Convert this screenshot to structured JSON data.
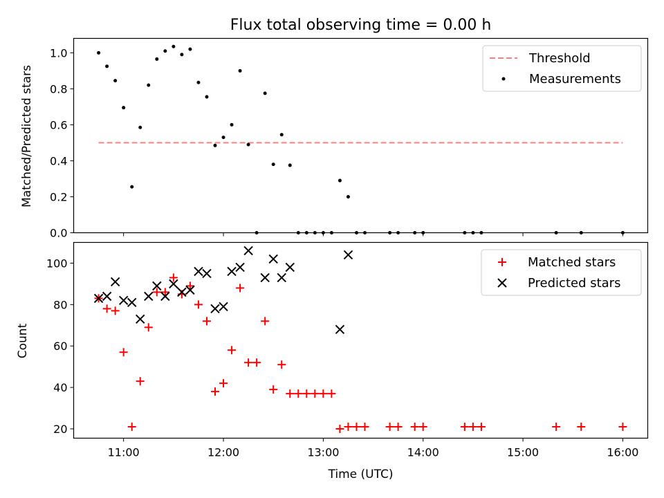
{
  "chart_data": [
    {
      "type": "scatter",
      "title": "Flux total observing time = 0.00 h",
      "xlabel": "",
      "ylabel": "Matched/Predicted stars",
      "xlim": [
        "10:30",
        "16:15"
      ],
      "ylim": [
        0,
        1.08
      ],
      "yticks": [
        "0.0",
        "0.2",
        "0.4",
        "0.6",
        "0.8",
        "1.0"
      ],
      "grid": false,
      "legend": {
        "placement": "top-right",
        "entries": [
          "Threshold",
          "Measurements"
        ]
      },
      "threshold": {
        "name": "Threshold",
        "value": 0.5,
        "x_start": "10:45",
        "x_end": "16:00",
        "color": "#ff7f7f"
      },
      "series": [
        {
          "name": "Measurements",
          "color": "#000000",
          "points": [
            [
              "10:45",
              1.0
            ],
            [
              "10:50",
              0.925
            ],
            [
              "10:55",
              0.845
            ],
            [
              "11:00",
              0.695
            ],
            [
              "11:05",
              0.255
            ],
            [
              "11:10",
              0.585
            ],
            [
              "11:15",
              0.82
            ],
            [
              "11:20",
              0.965
            ],
            [
              "11:25",
              1.01
            ],
            [
              "11:30",
              1.035
            ],
            [
              "11:35",
              0.99
            ],
            [
              "11:40",
              1.02
            ],
            [
              "11:45",
              0.835
            ],
            [
              "11:50",
              0.755
            ],
            [
              "11:55",
              0.485
            ],
            [
              "12:00",
              0.53
            ],
            [
              "12:05",
              0.6
            ],
            [
              "12:10",
              0.9
            ],
            [
              "12:15",
              0.49
            ],
            [
              "12:20",
              0.0
            ],
            [
              "12:25",
              0.775
            ],
            [
              "12:30",
              0.38
            ],
            [
              "12:35",
              0.545
            ],
            [
              "12:40",
              0.375
            ],
            [
              "12:45",
              0.0
            ],
            [
              "12:50",
              0.0
            ],
            [
              "12:55",
              0.0
            ],
            [
              "13:00",
              0.0
            ],
            [
              "13:05",
              0.0
            ],
            [
              "13:10",
              0.29
            ],
            [
              "13:15",
              0.2
            ],
            [
              "13:20",
              0.0
            ],
            [
              "13:25",
              0.0
            ],
            [
              "13:40",
              0.0
            ],
            [
              "13:45",
              0.0
            ],
            [
              "13:55",
              0.0
            ],
            [
              "14:00",
              0.0
            ],
            [
              "14:25",
              0.0
            ],
            [
              "14:30",
              0.0
            ],
            [
              "14:35",
              0.0
            ],
            [
              "15:20",
              0.0
            ],
            [
              "15:35",
              0.0
            ],
            [
              "16:00",
              0.0
            ]
          ]
        }
      ]
    },
    {
      "type": "scatter",
      "title": "",
      "xlabel": "Time (UTC)",
      "ylabel": "Count",
      "xlim": [
        "10:30",
        "16:15"
      ],
      "ylim": [
        15.5,
        110
      ],
      "xticks": [
        "11:00",
        "12:00",
        "13:00",
        "14:00",
        "15:00",
        "16:00"
      ],
      "yticks": [
        "20",
        "40",
        "60",
        "80",
        "100"
      ],
      "grid": false,
      "legend": {
        "placement": "top-right",
        "entries": [
          "Matched stars",
          "Predicted stars"
        ]
      },
      "series": [
        {
          "name": "Matched stars",
          "marker": "+",
          "color": "#ff0000",
          "points": [
            [
              "10:45",
              83
            ],
            [
              "10:50",
              78
            ],
            [
              "10:55",
              77
            ],
            [
              "11:00",
              57
            ],
            [
              "11:05",
              21
            ],
            [
              "11:10",
              43
            ],
            [
              "11:15",
              69
            ],
            [
              "11:20",
              86
            ],
            [
              "11:25",
              86
            ],
            [
              "11:30",
              93
            ],
            [
              "11:35",
              85
            ],
            [
              "11:40",
              89
            ],
            [
              "11:45",
              80
            ],
            [
              "11:50",
              72
            ],
            [
              "11:55",
              38
            ],
            [
              "12:00",
              42
            ],
            [
              "12:05",
              58
            ],
            [
              "12:10",
              88
            ],
            [
              "12:15",
              52
            ],
            [
              "12:20",
              52
            ],
            [
              "12:25",
              72
            ],
            [
              "12:30",
              39
            ],
            [
              "12:35",
              51
            ],
            [
              "12:40",
              37
            ],
            [
              "12:45",
              37
            ],
            [
              "12:50",
              37
            ],
            [
              "12:55",
              37
            ],
            [
              "13:00",
              37
            ],
            [
              "13:05",
              37
            ],
            [
              "13:10",
              20
            ],
            [
              "13:15",
              21
            ],
            [
              "13:20",
              21
            ],
            [
              "13:25",
              21
            ],
            [
              "13:40",
              21
            ],
            [
              "13:45",
              21
            ],
            [
              "13:55",
              21
            ],
            [
              "14:00",
              21
            ],
            [
              "14:25",
              21
            ],
            [
              "14:30",
              21
            ],
            [
              "14:35",
              21
            ],
            [
              "15:20",
              21
            ],
            [
              "15:35",
              21
            ],
            [
              "16:00",
              21
            ]
          ]
        },
        {
          "name": "Predicted stars",
          "marker": "x",
          "color": "#000000",
          "points": [
            [
              "10:45",
              83
            ],
            [
              "10:50",
              84
            ],
            [
              "10:55",
              91
            ],
            [
              "11:00",
              82
            ],
            [
              "11:05",
              81
            ],
            [
              "11:10",
              73
            ],
            [
              "11:15",
              84
            ],
            [
              "11:20",
              89
            ],
            [
              "11:25",
              84
            ],
            [
              "11:30",
              90
            ],
            [
              "11:35",
              86
            ],
            [
              "11:40",
              87
            ],
            [
              "11:45",
              96
            ],
            [
              "11:50",
              95
            ],
            [
              "11:55",
              78
            ],
            [
              "12:00",
              79
            ],
            [
              "12:05",
              96
            ],
            [
              "12:10",
              98
            ],
            [
              "12:15",
              106
            ],
            [
              "12:25",
              93
            ],
            [
              "12:30",
              102
            ],
            [
              "12:35",
              93
            ],
            [
              "12:40",
              98
            ],
            [
              "13:10",
              68
            ],
            [
              "13:15",
              104
            ]
          ]
        }
      ]
    }
  ]
}
